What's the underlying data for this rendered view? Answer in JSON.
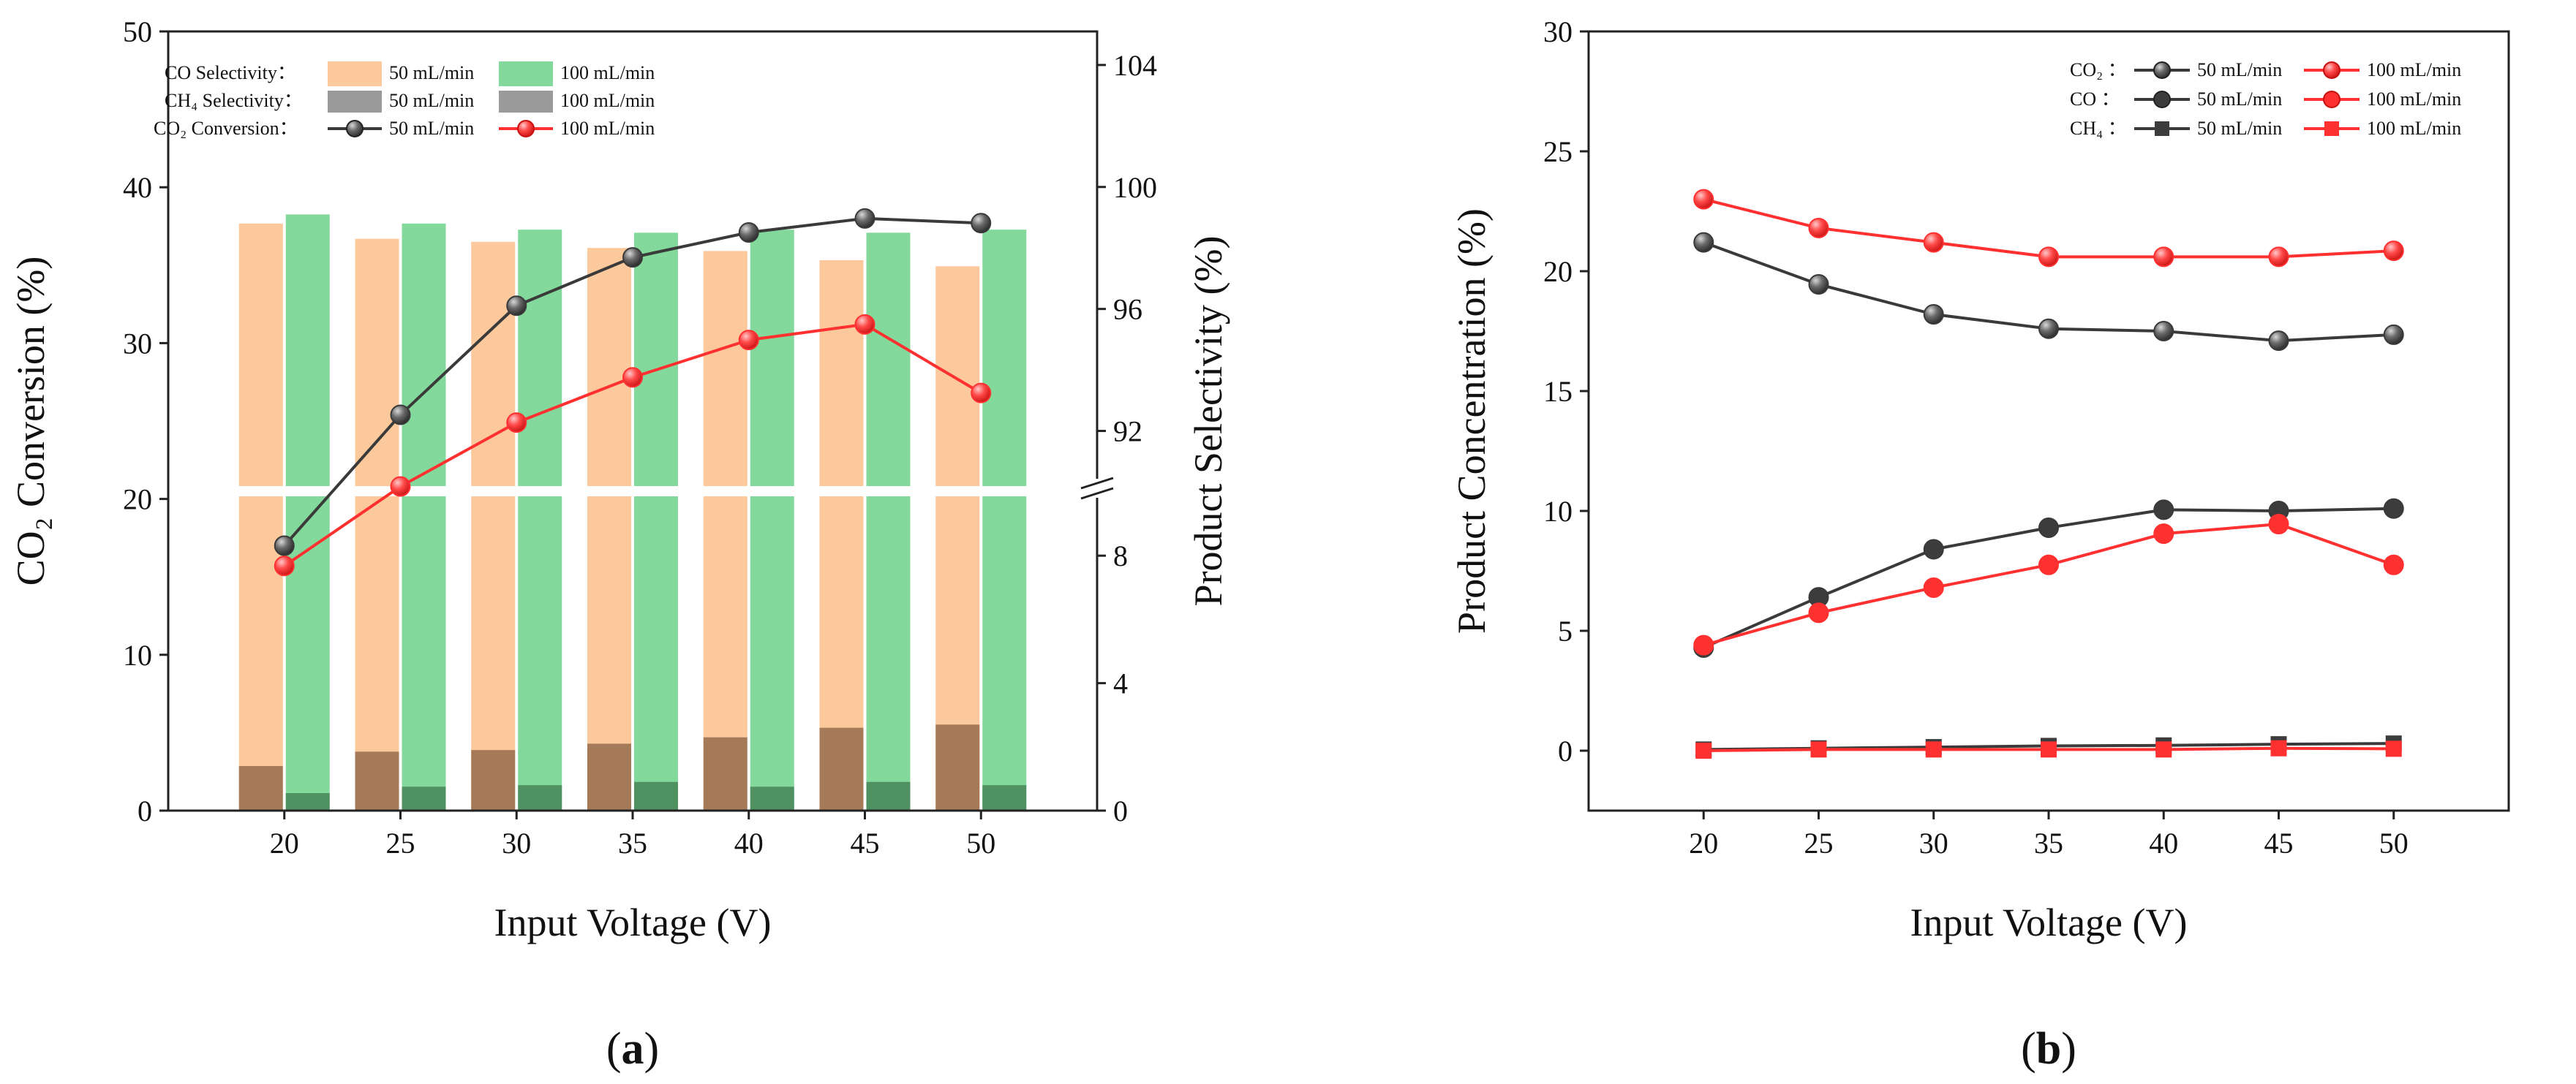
{
  "colors": {
    "co_50": "#fcc99c",
    "co_100": "#83d99b",
    "ch4": "#9a9a9a",
    "ch4_on_co50": "#9f7654",
    "ch4_on_co100": "#4d8d5f",
    "gray_line": "#3a3a3a",
    "red_line": "#ff3030"
  },
  "chart_data": [
    {
      "type": "bar",
      "panel_label_prefix": "(",
      "panel_label_letter": "a",
      "panel_label_suffix": ")",
      "xlabel": "Input Voltage (V)",
      "ylabel": "CO₂ Conversion (%)",
      "ylabel_right": "Product Selectivity (%)",
      "categories": [
        "20",
        "25",
        "30",
        "35",
        "40",
        "45",
        "50"
      ],
      "ylim": [
        0,
        50
      ],
      "yticks": [
        "0",
        "10",
        "20",
        "30",
        "40",
        "50"
      ],
      "y2_axis": {
        "lower_range": [
          0,
          10
        ],
        "lower_ticks": [
          "0",
          "4",
          "8"
        ],
        "upper_range": [
          90,
          105.1
        ],
        "upper_ticks": [
          "92",
          "96",
          "100",
          "104"
        ],
        "axis_break": true
      },
      "bar_series": [
        {
          "name": "CO Selectivity 50 mL/min",
          "values": [
            98.8,
            98.3,
            98.2,
            98.0,
            97.9,
            97.6,
            97.4
          ]
        },
        {
          "name": "CO Selectivity 100 mL/min",
          "values": [
            99.1,
            98.8,
            98.6,
            98.5,
            98.6,
            98.5,
            98.6
          ]
        },
        {
          "name": "CH4 Selectivity 50 mL/min",
          "values": [
            1.4,
            1.85,
            1.9,
            2.1,
            2.3,
            2.6,
            2.7
          ]
        },
        {
          "name": "CH4 Selectivity 100 mL/min",
          "values": [
            0.55,
            0.75,
            0.8,
            0.9,
            0.75,
            0.9,
            0.8
          ]
        }
      ],
      "line_series": [
        {
          "name": "CO2 Conversion 50 mL/min",
          "values": [
            17.0,
            25.4,
            32.4,
            35.5,
            37.1,
            38.0,
            37.7
          ]
        },
        {
          "name": "CO2 Conversion 100 mL/min",
          "values": [
            15.7,
            20.8,
            24.9,
            27.8,
            30.2,
            31.2,
            26.8
          ]
        }
      ],
      "legend": {
        "position": "top-right",
        "rows": [
          {
            "label": "CO  Selectivity：",
            "entries": [
              "50 mL/min",
              "100 mL/min"
            ]
          },
          {
            "label": "CH₄ Selectivity：",
            "entries": [
              "50 mL/min",
              "100 mL/min"
            ]
          },
          {
            "label": "CO₂ Conversion：",
            "entries": [
              "50 mL/min",
              "100 mL/min"
            ]
          }
        ]
      }
    },
    {
      "type": "line",
      "panel_label_prefix": "(",
      "panel_label_letter": "b",
      "panel_label_suffix": ")",
      "xlabel": "Input Voltage (V)",
      "ylabel": "Product Concentration (%)",
      "x": [
        20,
        25,
        30,
        35,
        40,
        45,
        50
      ],
      "xticks": [
        "20",
        "25",
        "30",
        "35",
        "40",
        "45",
        "50"
      ],
      "xlim": [
        15,
        55
      ],
      "ylim": [
        -2.5,
        30
      ],
      "yticks": [
        "0",
        "5",
        "10",
        "15",
        "20",
        "25",
        "30"
      ],
      "series": [
        {
          "name": "CO2 50 mL/min",
          "values": [
            21.2,
            19.45,
            18.2,
            17.6,
            17.5,
            17.1,
            17.35
          ]
        },
        {
          "name": "CO2 100 mL/min",
          "values": [
            23.0,
            21.8,
            21.2,
            20.6,
            20.6,
            20.6,
            20.85
          ]
        },
        {
          "name": "CO 50 mL/min",
          "values": [
            4.3,
            6.4,
            8.4,
            9.3,
            10.05,
            10.0,
            10.1
          ]
        },
        {
          "name": "CO 100 mL/min",
          "values": [
            4.4,
            5.75,
            6.8,
            7.75,
            9.05,
            9.45,
            7.75
          ]
        },
        {
          "name": "CH4 50 mL/min",
          "values": [
            0.05,
            0.1,
            0.15,
            0.2,
            0.22,
            0.27,
            0.3
          ]
        },
        {
          "name": "CH4 100 mL/min",
          "values": [
            0.0,
            0.05,
            0.05,
            0.05,
            0.05,
            0.1,
            0.08
          ]
        }
      ],
      "legend": {
        "position": "top-right",
        "rows": [
          {
            "label": "CO₂ ：",
            "entries": [
              "50 mL/min",
              "100 mL/min"
            ]
          },
          {
            "label": "CO  ：",
            "entries": [
              "50 mL/min",
              "100 mL/min"
            ]
          },
          {
            "label": "CH₄ ：",
            "entries": [
              "50 mL/min",
              "100 mL/min"
            ]
          }
        ]
      }
    }
  ]
}
